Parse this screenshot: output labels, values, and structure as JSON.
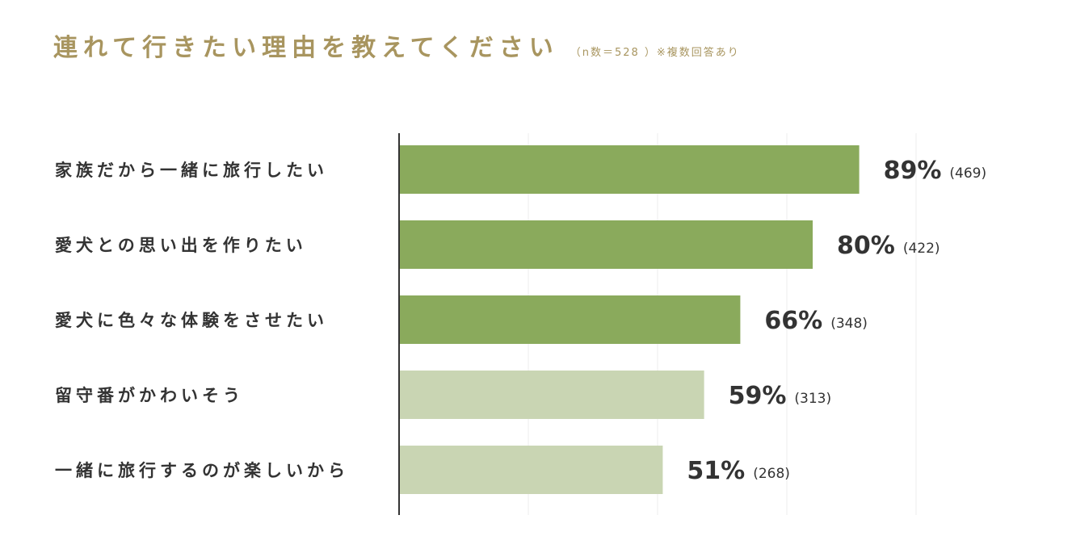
{
  "header": {
    "title": "連れて行きたい理由を教えてください",
    "subtitle": "（n数＝528 ）※複数回答あり"
  },
  "chart_data": {
    "type": "bar",
    "orientation": "horizontal",
    "categories": [
      "家族だから一緒に旅行したい",
      "愛犬との思い出を作りたい",
      "愛犬に色々な体験をさせたい",
      "留守番がかわいそう",
      "一緒に旅行するのが楽しいから"
    ],
    "values": [
      89,
      80,
      66,
      59,
      51
    ],
    "value_labels": [
      "89%",
      "80%",
      "66%",
      "59%",
      "51%"
    ],
    "counts": [
      "(469)",
      "(422)",
      "(348)",
      "(313)",
      "(268)"
    ],
    "xlim": [
      0,
      100
    ],
    "grid": true,
    "colors": {
      "highlight": "#8aaa5c",
      "muted": "#c9d5b3",
      "axis": "#333333",
      "grid": "#eeeeee"
    },
    "highlight_top": 3
  }
}
